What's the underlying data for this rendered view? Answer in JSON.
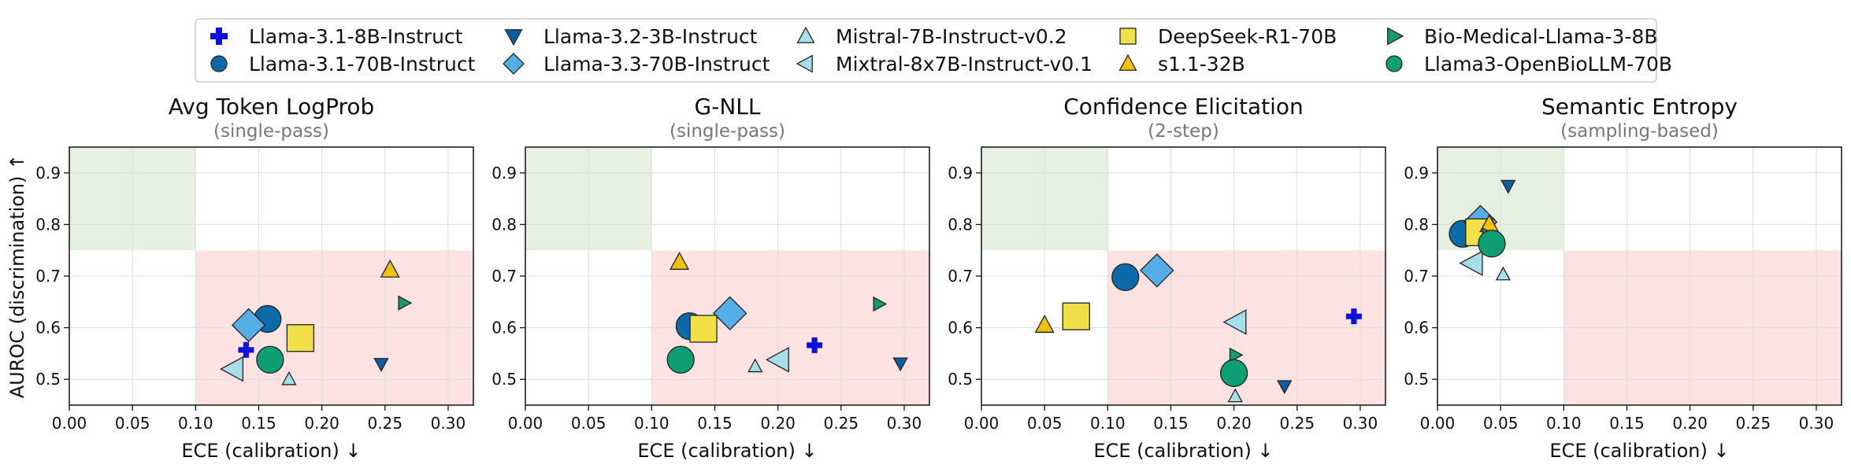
{
  "legend": [
    {
      "name": "Llama-3.1-8B-Instruct",
      "marker": "plus",
      "color": "#1010d8"
    },
    {
      "name": "Llama-3.1-70B-Instruct",
      "marker": "circle",
      "color": "#0d6aa8"
    },
    {
      "name": "Llama-3.2-3B-Instruct",
      "marker": "tri-down",
      "color": "#0d5fa0"
    },
    {
      "name": "Llama-3.3-70B-Instruct",
      "marker": "diamond",
      "color": "#55aee6"
    },
    {
      "name": "Mistral-7B-Instruct-v0.2",
      "marker": "tri-up",
      "color": "#a9dde8"
    },
    {
      "name": "Mixtral-8x7B-Instruct-v0.1",
      "marker": "tri-left",
      "color": "#a9dde8"
    },
    {
      "name": "DeepSeek-R1-70B",
      "marker": "square",
      "color": "#f2e04a"
    },
    {
      "name": "s1.1-32B",
      "marker": "tri-up",
      "color": "#f0c20e"
    },
    {
      "name": "Bio-Medical-Llama-3-8B",
      "marker": "tri-right",
      "color": "#18996f"
    },
    {
      "name": "Llama3-OpenBioLLM-70B",
      "marker": "circle",
      "color": "#0e9e74"
    }
  ],
  "colors": {
    "good_region": "#e5f0e0",
    "bad_region": "#fde2e2",
    "grid": "#dddddd"
  },
  "chart_data": [
    {
      "type": "scatter",
      "title": "Avg Token LogProb",
      "subtitle": "(single-pass)",
      "xlabel": "ECE (calibration) ↓",
      "ylabel": "AUROC (discrimination) ↑",
      "xlim": [
        0.0,
        0.32
      ],
      "ylim": [
        0.45,
        0.95
      ],
      "xticks": [
        "0.00",
        "0.05",
        "0.10",
        "0.15",
        "0.20",
        "0.25",
        "0.30"
      ],
      "yticks": [
        "0.5",
        "0.6",
        "0.7",
        "0.8",
        "0.9"
      ],
      "good_region": {
        "x": [
          0.0,
          0.1
        ],
        "y": [
          0.75,
          0.95
        ]
      },
      "bad_region": {
        "x": [
          0.1,
          0.32
        ],
        "y": [
          0.45,
          0.75
        ]
      },
      "points": [
        {
          "model": "Llama-3.1-8B-Instruct",
          "ece": 0.14,
          "auroc": 0.557
        },
        {
          "model": "Llama-3.1-70B-Instruct",
          "ece": 0.157,
          "auroc": 0.617
        },
        {
          "model": "Llama-3.2-3B-Instruct",
          "ece": 0.247,
          "auroc": 0.53
        },
        {
          "model": "Llama-3.3-70B-Instruct",
          "ece": 0.142,
          "auroc": 0.605
        },
        {
          "model": "Mistral-7B-Instruct-v0.2",
          "ece": 0.174,
          "auroc": 0.5
        },
        {
          "model": "Mixtral-8x7B-Instruct-v0.1",
          "ece": 0.13,
          "auroc": 0.52
        },
        {
          "model": "DeepSeek-R1-70B",
          "ece": 0.183,
          "auroc": 0.58
        },
        {
          "model": "s1.1-32B",
          "ece": 0.254,
          "auroc": 0.712
        },
        {
          "model": "Bio-Medical-Llama-3-8B",
          "ece": 0.265,
          "auroc": 0.648
        },
        {
          "model": "Llama3-OpenBioLLM-70B",
          "ece": 0.159,
          "auroc": 0.538
        }
      ]
    },
    {
      "type": "scatter",
      "title": "G-NLL",
      "subtitle": "(single-pass)",
      "xlabel": "ECE (calibration) ↓",
      "ylabel": "",
      "xlim": [
        0.0,
        0.32
      ],
      "ylim": [
        0.45,
        0.95
      ],
      "xticks": [
        "0.00",
        "0.05",
        "0.10",
        "0.15",
        "0.20",
        "0.25",
        "0.30"
      ],
      "yticks": [
        "0.5",
        "0.6",
        "0.7",
        "0.8",
        "0.9"
      ],
      "good_region": {
        "x": [
          0.0,
          0.1
        ],
        "y": [
          0.75,
          0.95
        ]
      },
      "bad_region": {
        "x": [
          0.1,
          0.32
        ],
        "y": [
          0.45,
          0.75
        ]
      },
      "points": [
        {
          "model": "Llama-3.1-8B-Instruct",
          "ece": 0.229,
          "auroc": 0.566
        },
        {
          "model": "Llama-3.1-70B-Instruct",
          "ece": 0.13,
          "auroc": 0.603
        },
        {
          "model": "Llama-3.2-3B-Instruct",
          "ece": 0.297,
          "auroc": 0.531
        },
        {
          "model": "Llama-3.3-70B-Instruct",
          "ece": 0.162,
          "auroc": 0.628
        },
        {
          "model": "Mistral-7B-Instruct-v0.2",
          "ece": 0.182,
          "auroc": 0.525
        },
        {
          "model": "Mixtral-8x7B-Instruct-v0.1",
          "ece": 0.201,
          "auroc": 0.538
        },
        {
          "model": "DeepSeek-R1-70B",
          "ece": 0.141,
          "auroc": 0.598
        },
        {
          "model": "s1.1-32B",
          "ece": 0.122,
          "auroc": 0.727
        },
        {
          "model": "Bio-Medical-Llama-3-8B",
          "ece": 0.28,
          "auroc": 0.646
        },
        {
          "model": "Llama3-OpenBioLLM-70B",
          "ece": 0.123,
          "auroc": 0.538
        }
      ]
    },
    {
      "type": "scatter",
      "title": "Confidence Elicitation",
      "subtitle": "(2-step)",
      "xlabel": "ECE (calibration) ↓",
      "ylabel": "",
      "xlim": [
        0.0,
        0.32
      ],
      "ylim": [
        0.45,
        0.95
      ],
      "xticks": [
        "0.00",
        "0.05",
        "0.10",
        "0.15",
        "0.20",
        "0.25",
        "0.30"
      ],
      "yticks": [
        "0.5",
        "0.6",
        "0.7",
        "0.8",
        "0.9"
      ],
      "good_region": {
        "x": [
          0.0,
          0.1
        ],
        "y": [
          0.75,
          0.95
        ]
      },
      "bad_region": {
        "x": [
          0.1,
          0.32
        ],
        "y": [
          0.45,
          0.75
        ]
      },
      "points": [
        {
          "model": "Llama-3.1-8B-Instruct",
          "ece": 0.295,
          "auroc": 0.622
        },
        {
          "model": "Llama-3.1-70B-Instruct",
          "ece": 0.114,
          "auroc": 0.698
        },
        {
          "model": "Llama-3.2-3B-Instruct",
          "ece": 0.24,
          "auroc": 0.487
        },
        {
          "model": "Llama-3.3-70B-Instruct",
          "ece": 0.139,
          "auroc": 0.711
        },
        {
          "model": "Mistral-7B-Instruct-v0.2",
          "ece": 0.201,
          "auroc": 0.467
        },
        {
          "model": "Mixtral-8x7B-Instruct-v0.1",
          "ece": 0.202,
          "auroc": 0.611
        },
        {
          "model": "DeepSeek-R1-70B",
          "ece": 0.075,
          "auroc": 0.622
        },
        {
          "model": "s1.1-32B",
          "ece": 0.05,
          "auroc": 0.605
        },
        {
          "model": "Bio-Medical-Llama-3-8B",
          "ece": 0.201,
          "auroc": 0.547
        },
        {
          "model": "Llama3-OpenBioLLM-70B",
          "ece": 0.2,
          "auroc": 0.512
        }
      ]
    },
    {
      "type": "scatter",
      "title": "Semantic Entropy",
      "subtitle": "(sampling-based)",
      "xlabel": "ECE (calibration) ↓",
      "ylabel": "",
      "xlim": [
        0.0,
        0.32
      ],
      "ylim": [
        0.45,
        0.95
      ],
      "xticks": [
        "0.00",
        "0.05",
        "0.10",
        "0.15",
        "0.20",
        "0.25",
        "0.30"
      ],
      "yticks": [
        "0.5",
        "0.6",
        "0.7",
        "0.8",
        "0.9"
      ],
      "good_region": {
        "x": [
          0.0,
          0.1
        ],
        "y": [
          0.75,
          0.95
        ]
      },
      "bad_region": {
        "x": [
          0.1,
          0.32
        ],
        "y": [
          0.45,
          0.75
        ]
      },
      "points": [
        {
          "model": "Llama-3.1-8B-Instruct",
          "ece": 0.04,
          "auroc": 0.79
        },
        {
          "model": "Llama-3.1-70B-Instruct",
          "ece": 0.02,
          "auroc": 0.782
        },
        {
          "model": "Llama-3.2-3B-Instruct",
          "ece": 0.056,
          "auroc": 0.875
        },
        {
          "model": "Llama-3.3-70B-Instruct",
          "ece": 0.034,
          "auroc": 0.805
        },
        {
          "model": "Mistral-7B-Instruct-v0.2",
          "ece": 0.052,
          "auroc": 0.703
        },
        {
          "model": "Mixtral-8x7B-Instruct-v0.1",
          "ece": 0.028,
          "auroc": 0.725
        },
        {
          "model": "DeepSeek-R1-70B",
          "ece": 0.033,
          "auroc": 0.785
        },
        {
          "model": "s1.1-32B",
          "ece": 0.041,
          "auroc": 0.8
        },
        {
          "model": "Bio-Medical-Llama-3-8B",
          "ece": 0.04,
          "auroc": 0.78
        },
        {
          "model": "Llama3-OpenBioLLM-70B",
          "ece": 0.043,
          "auroc": 0.763
        }
      ]
    }
  ]
}
